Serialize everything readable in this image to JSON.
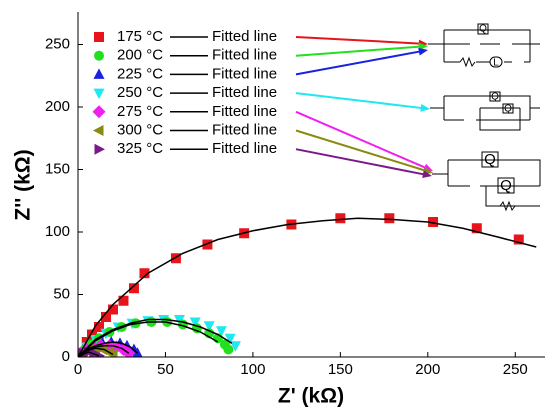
{
  "chart_data": {
    "type": "scatter",
    "x_label": "Z' (kΩ)",
    "y_label": "Z'' (kΩ)",
    "xlim": [
      0,
      267
    ],
    "ylim": [
      0,
      276
    ],
    "xticks": [
      0,
      50,
      100,
      150,
      200,
      250
    ],
    "yticks": [
      0,
      50,
      100,
      150,
      200,
      250
    ],
    "fit_label": "Fitted line",
    "fit_color": "#000000",
    "series": [
      {
        "name": "175 °C",
        "color": "#e8141b",
        "marker": "square",
        "x": [
          5,
          8,
          12,
          16,
          20,
          26,
          32,
          38,
          56,
          74,
          95,
          122,
          150,
          178,
          203,
          228,
          252
        ],
        "values": [
          12,
          18,
          24,
          32,
          38,
          45,
          55,
          67,
          79,
          90,
          99,
          106,
          111,
          111,
          108,
          103,
          94
        ],
        "fit_x": [
          0,
          10,
          20,
          40,
          60,
          80,
          100,
          120,
          140,
          160,
          180,
          200,
          220,
          240,
          262
        ],
        "fit_values": [
          0,
          25,
          42,
          67,
          83,
          94,
          101,
          106,
          109,
          111,
          110,
          108,
          103,
          96,
          88
        ]
      },
      {
        "name": "200 °C",
        "color": "#22e01e",
        "marker": "circle",
        "x": [
          3,
          7,
          12,
          18,
          25,
          33,
          42,
          51,
          60,
          68,
          75,
          80,
          84,
          86
        ],
        "values": [
          5,
          10,
          15,
          20,
          24,
          27,
          28,
          28,
          26,
          23,
          19,
          15,
          10,
          6
        ],
        "fit_x": [
          0,
          10,
          20,
          30,
          40,
          50,
          60,
          70,
          80
        ],
        "fit_values": [
          0,
          13,
          21,
          26,
          28,
          28,
          25,
          20,
          12
        ]
      },
      {
        "name": "225 °C",
        "color": "#1a22e0",
        "marker": "triangle-up",
        "x": [
          2,
          5,
          9,
          14,
          19,
          24,
          28,
          32,
          34
        ],
        "values": [
          3,
          6,
          9,
          11,
          12,
          11,
          9,
          6,
          3
        ],
        "fit_x": [
          0,
          5,
          10,
          15,
          20,
          25,
          30,
          34
        ],
        "fit_values": [
          0,
          6,
          9,
          11,
          12,
          11,
          8,
          3
        ]
      },
      {
        "name": "250 °C",
        "color": "#1ee8f0",
        "marker": "triangle-down",
        "x": [
          5,
          10,
          16,
          23,
          31,
          40,
          49,
          58,
          67,
          75,
          82,
          87,
          90
        ],
        "values": [
          8,
          14,
          19,
          24,
          27,
          29,
          30,
          30,
          28,
          25,
          21,
          15,
          9
        ],
        "fit_x": [
          0,
          10,
          20,
          30,
          40,
          50,
          60,
          70,
          80,
          88
        ],
        "fit_values": [
          0,
          14,
          22,
          27,
          30,
          30,
          28,
          24,
          18,
          11
        ]
      },
      {
        "name": "275 °C",
        "color": "#f01ef0",
        "marker": "diamond",
        "x": [
          2,
          5,
          9,
          13,
          18,
          22,
          26,
          29
        ],
        "values": [
          3,
          6,
          8,
          9,
          9,
          8,
          6,
          3
        ],
        "fit_x": [
          0,
          5,
          10,
          15,
          20,
          25,
          29
        ],
        "fit_values": [
          0,
          6,
          8,
          9,
          9,
          7,
          3
        ]
      },
      {
        "name": "300 °C",
        "color": "#8a8a10",
        "marker": "triangle-left",
        "x": [
          1,
          3,
          6,
          10,
          14,
          18,
          20
        ],
        "values": [
          2,
          4,
          6,
          7,
          6,
          4,
          2
        ],
        "fit_x": [
          0,
          5,
          10,
          15,
          20
        ],
        "fit_values": [
          0,
          5,
          7,
          6,
          2
        ]
      },
      {
        "name": "325 °C",
        "color": "#7a1a8a",
        "marker": "triangle-right",
        "x": [
          1,
          3,
          6,
          9,
          12
        ],
        "values": [
          1,
          3,
          4,
          3,
          1
        ],
        "fit_x": [
          0,
          6,
          12
        ],
        "fit_values": [
          0,
          4,
          1
        ]
      }
    ],
    "circuits": [
      {
        "labels": [
          "Q",
          "L"
        ]
      },
      {
        "labels": [
          "Q",
          "Q"
        ]
      },
      {
        "labels": [
          "Q",
          "Q"
        ]
      }
    ]
  }
}
